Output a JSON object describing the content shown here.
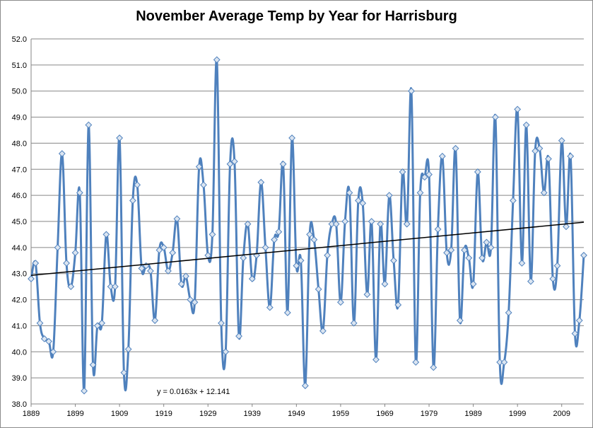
{
  "chart_data": {
    "type": "line",
    "title": "November Average Temp by Year for Harrisburg",
    "xlabel": "",
    "ylabel": "",
    "xlim": [
      1889,
      2014
    ],
    "ylim": [
      38.0,
      52.0
    ],
    "x_ticks": [
      "1889",
      "1899",
      "1909",
      "1919",
      "1929",
      "1939",
      "1949",
      "1959",
      "1969",
      "1979",
      "1989",
      "1999",
      "2009"
    ],
    "y_ticks": [
      "38.0",
      "39.0",
      "40.0",
      "41.0",
      "42.0",
      "43.0",
      "44.0",
      "45.0",
      "46.0",
      "47.0",
      "48.0",
      "49.0",
      "50.0",
      "51.0",
      "52.0"
    ],
    "grid": "horizontal",
    "series": [
      {
        "color": "#4f81bd",
        "marker": "diamond",
        "x": [
          1889,
          1890,
          1891,
          1892,
          1893,
          1894,
          1895,
          1896,
          1897,
          1898,
          1899,
          1900,
          1901,
          1902,
          1903,
          1904,
          1905,
          1906,
          1907,
          1908,
          1909,
          1910,
          1911,
          1912,
          1913,
          1914,
          1915,
          1916,
          1917,
          1918,
          1919,
          1920,
          1921,
          1922,
          1923,
          1924,
          1925,
          1926,
          1927,
          1928,
          1929,
          1930,
          1931,
          1932,
          1933,
          1934,
          1935,
          1936,
          1937,
          1938,
          1939,
          1940,
          1941,
          1942,
          1943,
          1944,
          1945,
          1946,
          1947,
          1948,
          1949,
          1950,
          1951,
          1952,
          1953,
          1954,
          1955,
          1956,
          1957,
          1958,
          1959,
          1960,
          1961,
          1962,
          1963,
          1964,
          1965,
          1966,
          1967,
          1968,
          1969,
          1970,
          1971,
          1972,
          1973,
          1974,
          1975,
          1976,
          1977,
          1978,
          1979,
          1980,
          1981,
          1982,
          1983,
          1984,
          1985,
          1986,
          1987,
          1988,
          1989,
          1990,
          1991,
          1992,
          1993,
          1994,
          1995,
          1996,
          1997,
          1998,
          1999,
          2000,
          2001,
          2002,
          2003,
          2004,
          2005,
          2006,
          2007,
          2008,
          2009,
          2010,
          2011,
          2012,
          2013,
          2014
        ],
        "values": [
          42.8,
          43.4,
          41.1,
          40.5,
          40.4,
          40.0,
          44.0,
          47.6,
          43.4,
          42.5,
          43.8,
          46.1,
          38.5,
          48.7,
          39.5,
          41.0,
          41.1,
          44.5,
          42.5,
          42.5,
          48.2,
          39.2,
          40.1,
          45.8,
          46.4,
          43.2,
          43.3,
          43.1,
          41.2,
          43.9,
          44.0,
          43.1,
          43.8,
          45.1,
          42.6,
          42.9,
          42.0,
          41.9,
          47.1,
          46.4,
          43.7,
          44.5,
          51.2,
          41.1,
          40.0,
          47.2,
          47.3,
          40.6,
          43.6,
          44.9,
          42.8,
          43.7,
          46.5,
          44.0,
          41.7,
          44.3,
          44.6,
          47.2,
          41.5,
          48.2,
          43.3,
          43.5,
          38.7,
          44.5,
          44.3,
          42.4,
          40.8,
          43.7,
          44.9,
          44.9,
          41.9,
          45.0,
          46.1,
          41.1,
          45.8,
          45.7,
          42.2,
          45.0,
          39.7,
          44.9,
          42.6,
          46.0,
          43.5,
          41.8,
          46.9,
          44.9,
          50.0,
          39.6,
          46.1,
          46.7,
          46.8,
          39.4,
          44.7,
          47.5,
          43.8,
          43.9,
          47.8,
          41.2,
          43.9,
          43.6,
          42.6,
          46.9,
          43.6,
          44.2,
          44.0,
          49.0,
          39.6,
          39.6,
          41.5,
          45.8,
          49.3,
          43.4,
          48.7,
          42.7,
          47.7,
          47.8,
          46.1,
          47.4,
          42.8,
          43.3,
          48.1,
          44.8,
          47.5,
          40.7,
          41.2,
          43.7
        ]
      }
    ],
    "trendline": {
      "type": "linear",
      "color": "#000000",
      "slope": 0.0163,
      "intercept": 12.141,
      "equation_label": "y = 0.0163x + 12.141"
    }
  }
}
